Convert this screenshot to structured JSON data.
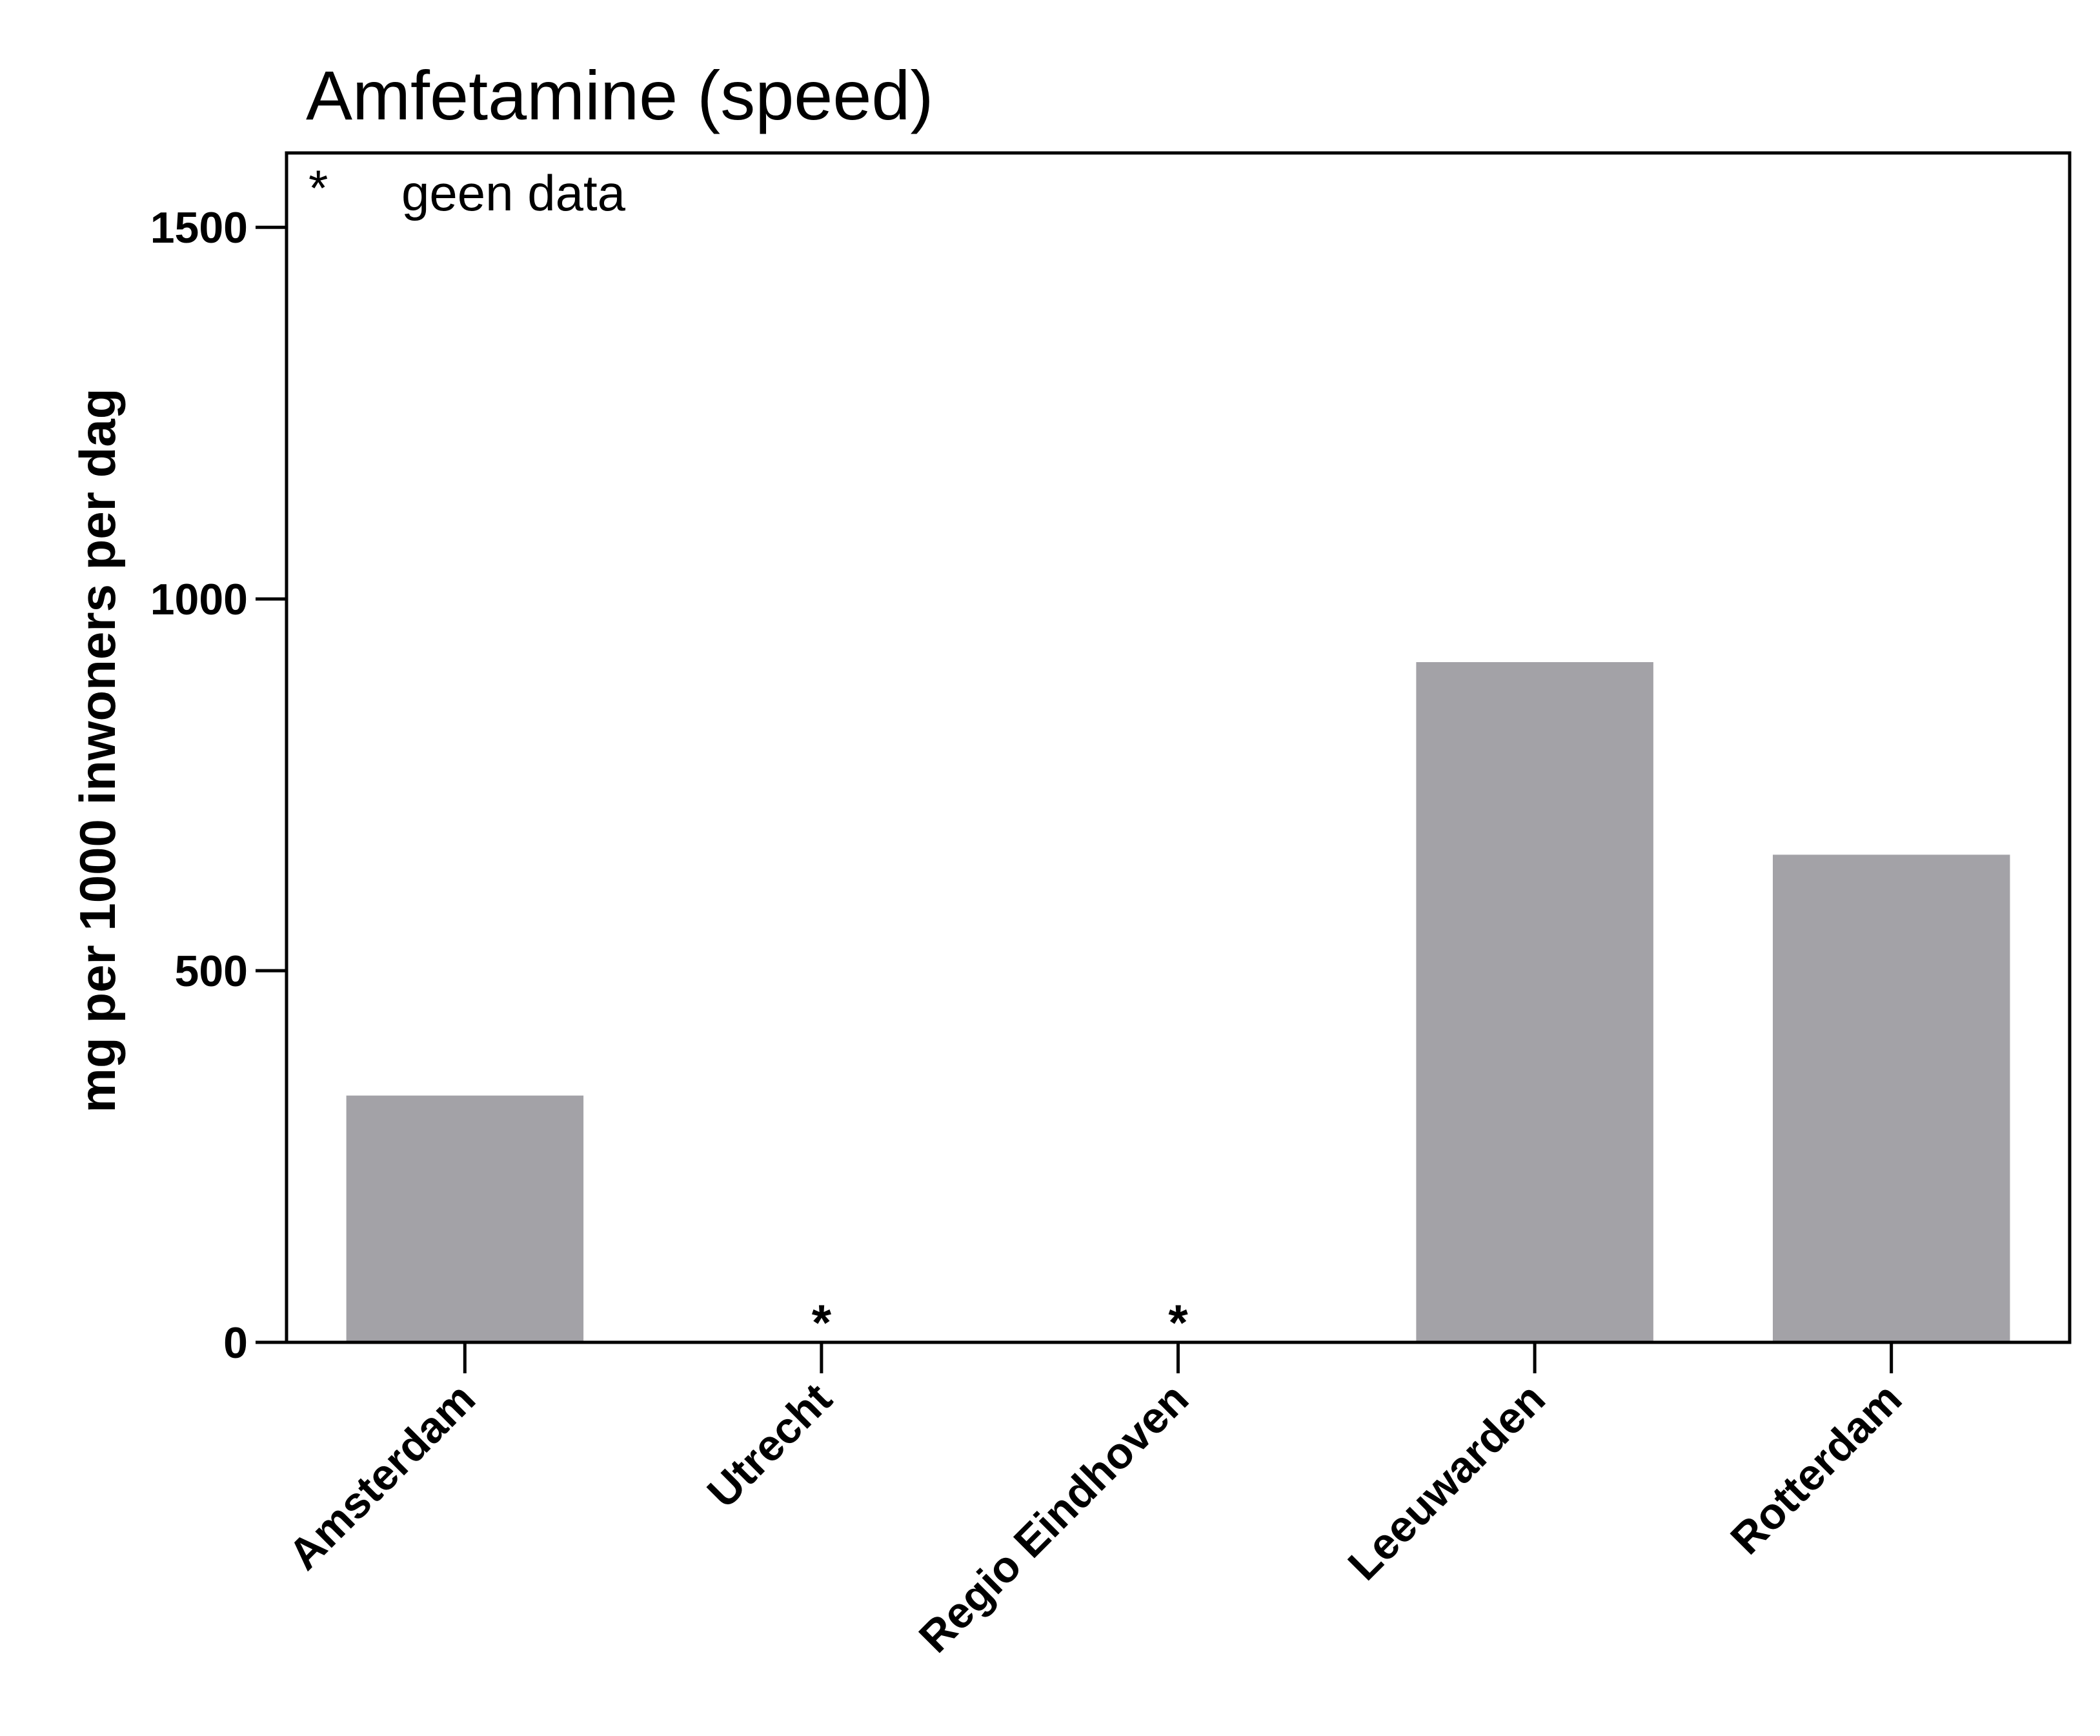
{
  "chart_data": {
    "type": "bar",
    "title": "Amfetamine (speed)",
    "xlabel": "",
    "ylabel": "mg per 1000 inwoners per dag",
    "categories": [
      "Amsterdam",
      "Utrecht",
      "Regio Eindhoven",
      "Leeuwarden",
      "Rotterdam"
    ],
    "values": [
      332,
      null,
      null,
      915,
      656
    ],
    "no_data": [
      false,
      true,
      true,
      false,
      false
    ],
    "no_data_marker": "*",
    "ylim": [
      0,
      1600
    ],
    "yticks": [
      0,
      500,
      1000,
      1500
    ],
    "ytick_labels": [
      "0",
      "500",
      "1000",
      "1500"
    ],
    "legend": {
      "marker": "*",
      "label": "geen data",
      "placement": "top-left"
    },
    "bar_color": "#a3a2a7",
    "grid": false
  }
}
